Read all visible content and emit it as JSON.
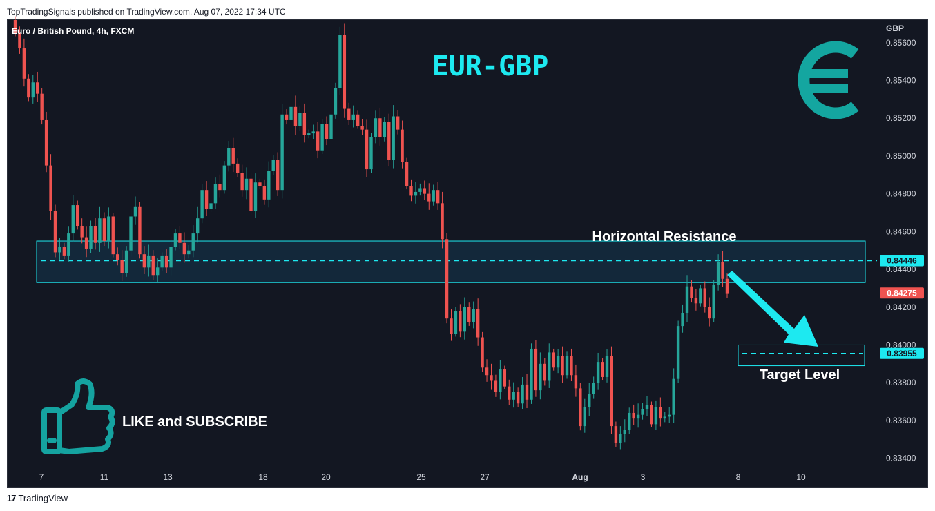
{
  "header": {
    "published": "TopTradingSignals published on TradingView.com, Aug 07, 2022 17:34 UTC"
  },
  "footer": {
    "logo_mark": "17",
    "brand": "TradingView"
  },
  "colors": {
    "background": "#131722",
    "bull": "#26a69a",
    "bear": "#ef5350",
    "accent": "#1de9f0",
    "resistance_fill": "#13283a"
  },
  "icons": {
    "euro": "euro-sign-icon",
    "thumb": "thumbs-up-icon",
    "arrow": "down-right-arrow-icon"
  },
  "chart_data": {
    "type": "candlestick",
    "symbol_label": "Euro / British Pound, 4h, FXCM",
    "currency": "GBP",
    "title": "EUR-GBP",
    "ylim": [
      0.8334,
      0.8572
    ],
    "y_ticks": [
      "0.85600",
      "0.85400",
      "0.85200",
      "0.85000",
      "0.84800",
      "0.84600",
      "0.84400",
      "0.84200",
      "0.84000",
      "0.83800",
      "0.83600",
      "0.83400"
    ],
    "x_ticks": [
      "7",
      "11",
      "13",
      "18",
      "20",
      "25",
      "27",
      "Aug",
      "3",
      "8",
      "10"
    ],
    "price_labels": [
      {
        "label": "0.84446",
        "value": 0.84446,
        "style": "line"
      },
      {
        "label": "0.84275",
        "value": 0.84275,
        "style": "current"
      },
      {
        "label": "0.83955",
        "value": 0.83955,
        "style": "line"
      }
    ],
    "resistance_zone": {
      "name": "Horizontal Resistance",
      "high": 0.8455,
      "low": 0.8433,
      "level": 0.84446
    },
    "target_zone": {
      "name": "Target Level",
      "high": 0.84,
      "low": 0.8389,
      "level": 0.83955
    },
    "overlay_text": "LIKE and SUBSCRIBE",
    "closes": [
      0.8565,
      0.8557,
      0.8541,
      0.8531,
      0.8539,
      0.8533,
      0.8519,
      0.8495,
      0.8471,
      0.8449,
      0.8452,
      0.8447,
      0.8459,
      0.8474,
      0.8463,
      0.8457,
      0.8451,
      0.8463,
      0.8454,
      0.8467,
      0.8455,
      0.8468,
      0.8448,
      0.8445,
      0.8438,
      0.845,
      0.8468,
      0.8473,
      0.8448,
      0.8441,
      0.8447,
      0.8437,
      0.8441,
      0.8447,
      0.8441,
      0.8452,
      0.8459,
      0.8454,
      0.8448,
      0.845,
      0.8459,
      0.8467,
      0.8482,
      0.8472,
      0.8475,
      0.8485,
      0.8482,
      0.8495,
      0.8504,
      0.8496,
      0.8491,
      0.8482,
      0.8488,
      0.8471,
      0.8486,
      0.8484,
      0.8477,
      0.8492,
      0.8498,
      0.8482,
      0.8522,
      0.8519,
      0.8526,
      0.8516,
      0.8523,
      0.8511,
      0.8512,
      0.8513,
      0.8503,
      0.8517,
      0.8509,
      0.8522,
      0.8536,
      0.8564,
      0.8525,
      0.8519,
      0.8522,
      0.8516,
      0.8514,
      0.8493,
      0.851,
      0.852,
      0.851,
      0.8518,
      0.8498,
      0.8521,
      0.8514,
      0.8497,
      0.8484,
      0.8479,
      0.8481,
      0.8483,
      0.848,
      0.8476,
      0.8482,
      0.8475,
      0.8456,
      0.8414,
      0.8406,
      0.8418,
      0.8407,
      0.842,
      0.8412,
      0.8419,
      0.8404,
      0.8388,
      0.8384,
      0.8381,
      0.8375,
      0.8387,
      0.8378,
      0.8371,
      0.8375,
      0.8369,
      0.8379,
      0.8371,
      0.8398,
      0.8376,
      0.839,
      0.8381,
      0.8396,
      0.8388,
      0.8394,
      0.8384,
      0.8394,
      0.8384,
      0.8377,
      0.8357,
      0.8367,
      0.8374,
      0.838,
      0.8391,
      0.8383,
      0.8394,
      0.8357,
      0.8348,
      0.8353,
      0.8355,
      0.8364,
      0.8361,
      0.8363,
      0.8366,
      0.8368,
      0.8358,
      0.8367,
      0.8361,
      0.8362,
      0.8363,
      0.8382,
      0.841,
      0.8417,
      0.8431,
      0.8425,
      0.8422,
      0.843,
      0.842,
      0.8414,
      0.8432,
      0.8444,
      0.8435,
      0.8427
    ]
  }
}
